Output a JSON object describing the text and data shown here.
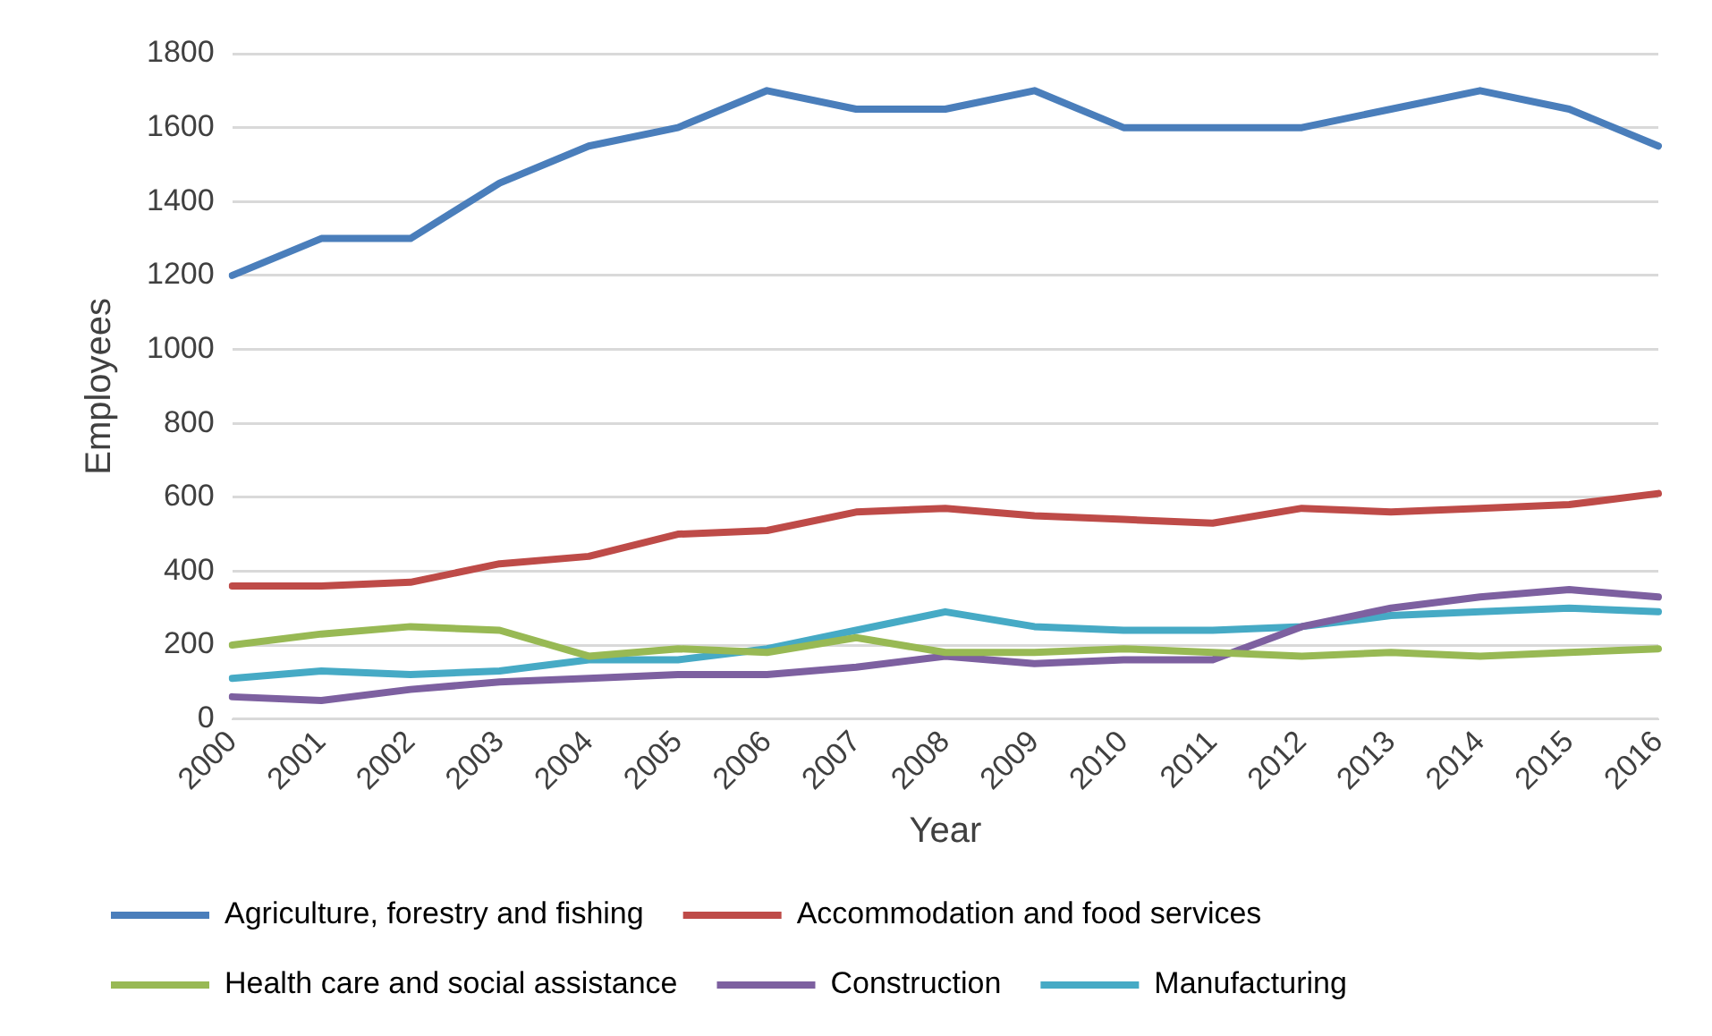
{
  "chart_data": {
    "type": "line",
    "xlabel": "Year",
    "ylabel": "Employees",
    "categories": [
      "2000",
      "2001",
      "2002",
      "2003",
      "2004",
      "2005",
      "2006",
      "2007",
      "2008",
      "2009",
      "2010",
      "2011",
      "2012",
      "2013",
      "2014",
      "2015",
      "2016"
    ],
    "series": [
      {
        "name": "Agriculture, forestry and fishing",
        "color": "#4a7ebb",
        "values": [
          1200,
          1300,
          1300,
          1450,
          1550,
          1600,
          1700,
          1650,
          1650,
          1700,
          1600,
          1600,
          1600,
          1650,
          1700,
          1650,
          1550
        ]
      },
      {
        "name": "Accommodation and food services",
        "color": "#be4b48",
        "values": [
          360,
          360,
          370,
          420,
          440,
          500,
          510,
          560,
          570,
          550,
          540,
          530,
          570,
          560,
          570,
          580,
          610
        ]
      },
      {
        "name": "Health care and social assistance",
        "color": "#98b954",
        "values": [
          200,
          230,
          250,
          240,
          170,
          190,
          180,
          220,
          180,
          180,
          190,
          180,
          170,
          180,
          170,
          180,
          190
        ]
      },
      {
        "name": "Construction",
        "color": "#7d60a0",
        "values": [
          60,
          50,
          80,
          100,
          110,
          120,
          120,
          140,
          170,
          150,
          160,
          160,
          250,
          300,
          330,
          350,
          330
        ]
      },
      {
        "name": "Manufacturing",
        "color": "#46aac5",
        "values": [
          110,
          130,
          120,
          130,
          160,
          160,
          190,
          240,
          290,
          250,
          240,
          240,
          250,
          280,
          290,
          300,
          290
        ]
      }
    ],
    "ylim": [
      0,
      1800
    ],
    "yticks": [
      0,
      200,
      400,
      600,
      800,
      1000,
      1200,
      1400,
      1600,
      1800
    ],
    "grid": "y",
    "legend": "bottom",
    "marker": "none",
    "line_style": "solid"
  }
}
